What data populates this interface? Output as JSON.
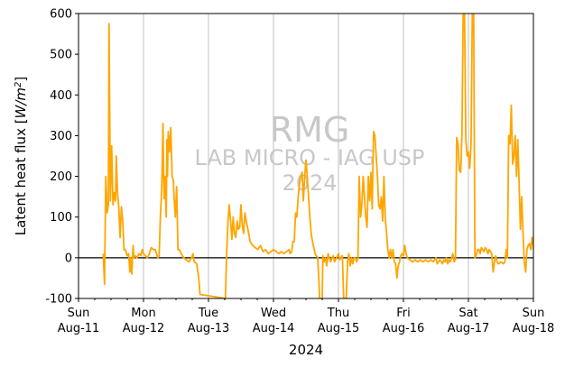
{
  "chart_data": {
    "type": "line",
    "title": "",
    "xlabel": "2024",
    "ylabel": "Latent heat flux [W/m²]",
    "ylabel_parts": {
      "main": "Latent heat flux [",
      "var": "W/m",
      "sup": "2",
      "end": "]"
    },
    "ylim": [
      -100,
      600
    ],
    "yticks": [
      -100,
      0,
      100,
      200,
      300,
      400,
      500,
      600
    ],
    "xlim": [
      0,
      7
    ],
    "x_unit": "days since Sun Aug-11 2024 00:00",
    "xticks": [
      {
        "day": 0,
        "line1": "Sun",
        "line2": "Aug-11"
      },
      {
        "day": 1,
        "line1": "Mon",
        "line2": "Aug-12"
      },
      {
        "day": 2,
        "line1": "Tue",
        "line2": "Aug-13"
      },
      {
        "day": 3,
        "line1": "Wed",
        "line2": "Aug-14"
      },
      {
        "day": 4,
        "line1": "Thu",
        "line2": "Aug-15"
      },
      {
        "day": 5,
        "line1": "Fri",
        "line2": "Aug-16"
      },
      {
        "day": 6,
        "line1": "Sat",
        "line2": "Aug-17"
      },
      {
        "day": 7,
        "line1": "Sun",
        "line2": "Aug-18"
      }
    ],
    "grid": "vertical-major",
    "zero_line": true,
    "watermark": {
      "line1": "RMG",
      "line2": "LAB MICRO - IAG USP",
      "line3": "2024"
    },
    "series": [
      {
        "color": "#FFA500",
        "points": [
          [
            0.38,
            10
          ],
          [
            0.4,
            -65
          ],
          [
            0.42,
            200
          ],
          [
            0.44,
            110
          ],
          [
            0.46,
            130
          ],
          [
            0.47,
            575
          ],
          [
            0.49,
            140
          ],
          [
            0.51,
            275
          ],
          [
            0.53,
            130
          ],
          [
            0.55,
            160
          ],
          [
            0.57,
            140
          ],
          [
            0.58,
            250
          ],
          [
            0.6,
            160
          ],
          [
            0.62,
            125
          ],
          [
            0.64,
            50
          ],
          [
            0.66,
            125
          ],
          [
            0.68,
            90
          ],
          [
            0.7,
            20
          ],
          [
            0.72,
            20
          ],
          [
            0.75,
            5
          ],
          [
            0.77,
            10
          ],
          [
            0.78,
            -10
          ],
          [
            0.79,
            -35
          ],
          [
            0.8,
            0
          ],
          [
            0.81,
            -20
          ],
          [
            0.82,
            -40
          ],
          [
            0.84,
            30
          ],
          [
            0.85,
            0
          ],
          [
            0.87,
            5
          ],
          [
            0.9,
            0
          ],
          [
            0.93,
            10
          ],
          [
            0.96,
            5
          ],
          [
            0.98,
            20
          ],
          [
            1.0,
            10
          ],
          [
            1.03,
            5
          ],
          [
            1.06,
            0
          ],
          [
            1.09,
            10
          ],
          [
            1.12,
            25
          ],
          [
            1.15,
            20
          ],
          [
            1.18,
            20
          ],
          [
            1.2,
            10
          ],
          [
            1.22,
            0
          ],
          [
            1.24,
            5
          ],
          [
            1.26,
            100
          ],
          [
            1.28,
            170
          ],
          [
            1.3,
            330
          ],
          [
            1.31,
            200
          ],
          [
            1.32,
            145
          ],
          [
            1.33,
            200
          ],
          [
            1.35,
            100
          ],
          [
            1.36,
            290
          ],
          [
            1.37,
            200
          ],
          [
            1.38,
            310
          ],
          [
            1.4,
            260
          ],
          [
            1.42,
            320
          ],
          [
            1.44,
            200
          ],
          [
            1.46,
            190
          ],
          [
            1.47,
            150
          ],
          [
            1.49,
            100
          ],
          [
            1.51,
            175
          ],
          [
            1.53,
            20
          ],
          [
            1.55,
            20
          ],
          [
            1.58,
            10
          ],
          [
            1.62,
            0
          ],
          [
            1.66,
            -5
          ],
          [
            1.7,
            -10
          ],
          [
            1.74,
            0
          ],
          [
            1.76,
            10
          ],
          [
            1.78,
            -10
          ],
          [
            1.82,
            -15
          ],
          [
            1.85,
            -50
          ],
          [
            1.87,
            -90
          ],
          [
            2.26,
            -100
          ],
          [
            2.28,
            15
          ],
          [
            2.3,
            90
          ],
          [
            2.32,
            130
          ],
          [
            2.34,
            90
          ],
          [
            2.36,
            45
          ],
          [
            2.38,
            100
          ],
          [
            2.4,
            60
          ],
          [
            2.42,
            50
          ],
          [
            2.44,
            90
          ],
          [
            2.46,
            70
          ],
          [
            2.48,
            75
          ],
          [
            2.5,
            130
          ],
          [
            2.52,
            80
          ],
          [
            2.54,
            60
          ],
          [
            2.56,
            110
          ],
          [
            2.58,
            90
          ],
          [
            2.6,
            75
          ],
          [
            2.62,
            60
          ],
          [
            2.64,
            40
          ],
          [
            2.68,
            30
          ],
          [
            2.72,
            25
          ],
          [
            2.76,
            20
          ],
          [
            2.8,
            30
          ],
          [
            2.84,
            15
          ],
          [
            2.88,
            20
          ],
          [
            2.92,
            10
          ],
          [
            2.96,
            15
          ],
          [
            3.0,
            20
          ],
          [
            3.04,
            15
          ],
          [
            3.08,
            10
          ],
          [
            3.12,
            15
          ],
          [
            3.16,
            10
          ],
          [
            3.2,
            15
          ],
          [
            3.24,
            20
          ],
          [
            3.26,
            10
          ],
          [
            3.28,
            15
          ],
          [
            3.3,
            40
          ],
          [
            3.32,
            40
          ],
          [
            3.34,
            110
          ],
          [
            3.36,
            100
          ],
          [
            3.38,
            150
          ],
          [
            3.4,
            180
          ],
          [
            3.42,
            200
          ],
          [
            3.44,
            210
          ],
          [
            3.46,
            140
          ],
          [
            3.48,
            200
          ],
          [
            3.5,
            240
          ],
          [
            3.52,
            200
          ],
          [
            3.54,
            150
          ],
          [
            3.56,
            100
          ],
          [
            3.58,
            60
          ],
          [
            3.6,
            40
          ],
          [
            3.64,
            10
          ],
          [
            3.66,
            5
          ],
          [
            3.68,
            0
          ],
          [
            3.7,
            -60
          ],
          [
            3.71,
            -100
          ],
          [
            3.75,
            -100
          ],
          [
            3.76,
            5
          ],
          [
            3.78,
            -10
          ],
          [
            3.8,
            0
          ],
          [
            3.82,
            -20
          ],
          [
            3.84,
            10
          ],
          [
            3.86,
            0
          ],
          [
            3.88,
            -10
          ],
          [
            3.9,
            0
          ],
          [
            3.92,
            5
          ],
          [
            3.94,
            -10
          ],
          [
            4.0,
            10
          ],
          [
            4.02,
            -5
          ],
          [
            4.04,
            0
          ],
          [
            4.06,
            5
          ],
          [
            4.08,
            -100
          ],
          [
            4.12,
            -100
          ],
          [
            4.14,
            -10
          ],
          [
            4.16,
            10
          ],
          [
            4.18,
            -20
          ],
          [
            4.2,
            0
          ],
          [
            4.22,
            -15
          ],
          [
            4.24,
            0
          ],
          [
            4.26,
            0
          ],
          [
            4.28,
            -10
          ],
          [
            4.3,
            0
          ],
          [
            4.32,
            200
          ],
          [
            4.34,
            100
          ],
          [
            4.36,
            130
          ],
          [
            4.38,
            200
          ],
          [
            4.4,
            150
          ],
          [
            4.42,
            100
          ],
          [
            4.44,
            75
          ],
          [
            4.46,
            200
          ],
          [
            4.48,
            140
          ],
          [
            4.5,
            210
          ],
          [
            4.52,
            120
          ],
          [
            4.54,
            310
          ],
          [
            4.56,
            300
          ],
          [
            4.58,
            250
          ],
          [
            4.6,
            200
          ],
          [
            4.62,
            130
          ],
          [
            4.64,
            120
          ],
          [
            4.66,
            150
          ],
          [
            4.68,
            90
          ],
          [
            4.7,
            200
          ],
          [
            4.72,
            100
          ],
          [
            4.74,
            60
          ],
          [
            4.76,
            20
          ],
          [
            4.78,
            0
          ],
          [
            4.8,
            20
          ],
          [
            4.82,
            0
          ],
          [
            4.84,
            20
          ],
          [
            4.86,
            -10
          ],
          [
            4.88,
            -15
          ],
          [
            4.9,
            -50
          ],
          [
            4.92,
            -20
          ],
          [
            4.94,
            -10
          ],
          [
            4.96,
            5
          ],
          [
            4.98,
            10
          ],
          [
            5.0,
            5
          ],
          [
            5.02,
            30
          ],
          [
            5.04,
            10
          ],
          [
            5.06,
            0
          ],
          [
            5.1,
            -5
          ],
          [
            5.14,
            -10
          ],
          [
            5.18,
            -5
          ],
          [
            5.22,
            -10
          ],
          [
            5.26,
            -5
          ],
          [
            5.3,
            -10
          ],
          [
            5.34,
            -5
          ],
          [
            5.38,
            -10
          ],
          [
            5.42,
            -5
          ],
          [
            5.46,
            -10
          ],
          [
            5.5,
            0
          ],
          [
            5.52,
            -15
          ],
          [
            5.54,
            -10
          ],
          [
            5.56,
            -5
          ],
          [
            5.58,
            -10
          ],
          [
            5.6,
            -15
          ],
          [
            5.62,
            -5
          ],
          [
            5.64,
            -10
          ],
          [
            5.66,
            0
          ],
          [
            5.68,
            -15
          ],
          [
            5.7,
            -5
          ],
          [
            5.72,
            -10
          ],
          [
            5.74,
            0
          ],
          [
            5.76,
            10
          ],
          [
            5.78,
            -10
          ],
          [
            5.8,
            -5
          ],
          [
            5.82,
            295
          ],
          [
            5.84,
            280
          ],
          [
            5.86,
            215
          ],
          [
            5.88,
            210
          ],
          [
            5.9,
            300
          ],
          [
            5.92,
            600
          ],
          [
            5.94,
            600
          ],
          [
            5.96,
            290
          ],
          [
            5.98,
            250
          ],
          [
            6.0,
            260
          ],
          [
            6.02,
            220
          ],
          [
            6.04,
            280
          ],
          [
            6.06,
            600
          ],
          [
            6.08,
            600
          ],
          [
            6.1,
            0
          ],
          [
            6.12,
            5
          ],
          [
            6.14,
            20
          ],
          [
            6.16,
            20
          ],
          [
            6.18,
            10
          ],
          [
            6.2,
            25
          ],
          [
            6.22,
            20
          ],
          [
            6.24,
            15
          ],
          [
            6.26,
            25
          ],
          [
            6.28,
            20
          ],
          [
            6.3,
            10
          ],
          [
            6.32,
            20
          ],
          [
            6.34,
            15
          ],
          [
            6.36,
            10
          ],
          [
            6.38,
            -35
          ],
          [
            6.4,
            -10
          ],
          [
            6.42,
            5
          ],
          [
            6.44,
            -10
          ],
          [
            6.46,
            -15
          ],
          [
            6.5,
            -10
          ],
          [
            6.54,
            -15
          ],
          [
            6.56,
            -10
          ],
          [
            6.58,
            20
          ],
          [
            6.6,
            0
          ],
          [
            6.62,
            300
          ],
          [
            6.64,
            280
          ],
          [
            6.66,
            375
          ],
          [
            6.68,
            230
          ],
          [
            6.7,
            250
          ],
          [
            6.72,
            300
          ],
          [
            6.74,
            200
          ],
          [
            6.76,
            290
          ],
          [
            6.78,
            180
          ],
          [
            6.8,
            70
          ],
          [
            6.82,
            150
          ],
          [
            6.84,
            60
          ],
          [
            6.86,
            -10
          ],
          [
            6.88,
            -35
          ],
          [
            6.9,
            20
          ],
          [
            6.92,
            30
          ],
          [
            6.94,
            35
          ],
          [
            6.96,
            20
          ],
          [
            6.98,
            50
          ],
          [
            7.0,
            30
          ],
          [
            7.0,
            20
          ]
        ]
      }
    ]
  }
}
